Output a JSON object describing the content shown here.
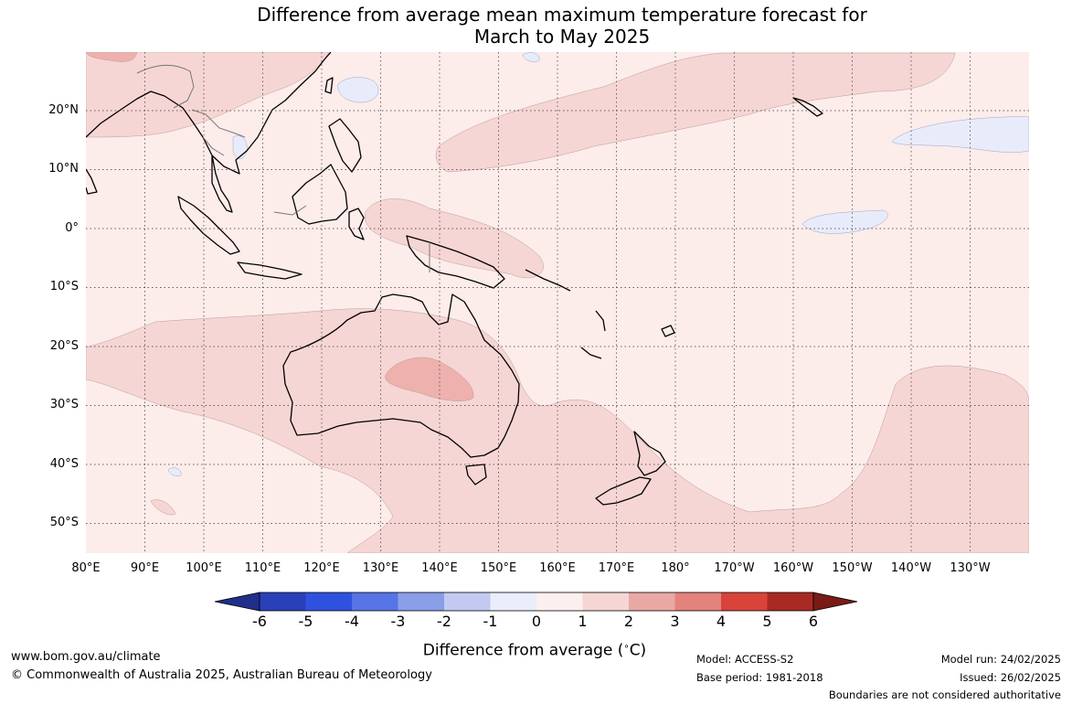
{
  "map": {
    "title": "Difference from average mean maximum temperature forecast for\nMarch to May 2025",
    "lat_labels": [
      "20°N",
      "10°N",
      "0°",
      "10°S",
      "20°S",
      "30°S",
      "40°S",
      "50°S"
    ],
    "lon_labels": [
      "80°E",
      "90°E",
      "100°E",
      "110°E",
      "120°E",
      "130°E",
      "140°E",
      "150°E",
      "160°E",
      "170°E",
      "180°",
      "170°W",
      "160°W",
      "150°W",
      "140°W",
      "130°W"
    ],
    "extent": {
      "lon_east": [
        80,
        240
      ],
      "lat": [
        -55,
        30
      ]
    }
  },
  "legend": {
    "ticks": [
      "-6",
      "-5",
      "-4",
      "-3",
      "-2",
      "-1",
      "0",
      "1",
      "2",
      "3",
      "4",
      "5",
      "6"
    ],
    "colors": [
      "#1f2f8a",
      "#2a40b8",
      "#2f52de",
      "#5674e6",
      "#8a9ee8",
      "#c2caf2",
      "#eaedfc",
      "#fdefed",
      "#f6d6d4",
      "#eaa8a4",
      "#e3837b",
      "#d8443a",
      "#a82a22",
      "#7a1b16"
    ],
    "label": "Difference from average (",
    "label_unit": "C)",
    "label_degree": "∘"
  },
  "footer": {
    "website": "www.bom.gov.au/climate",
    "copyright": "© Commonwealth of Australia 2025, Australian Bureau of Meteorology",
    "model": "Model: ACCESS-S2",
    "base_period": "Base period: 1981-2018",
    "model_run": "Model run: 24/02/2025",
    "issued": "Issued: 26/02/2025",
    "disclaimer": "Boundaries are not considered authoritative"
  }
}
